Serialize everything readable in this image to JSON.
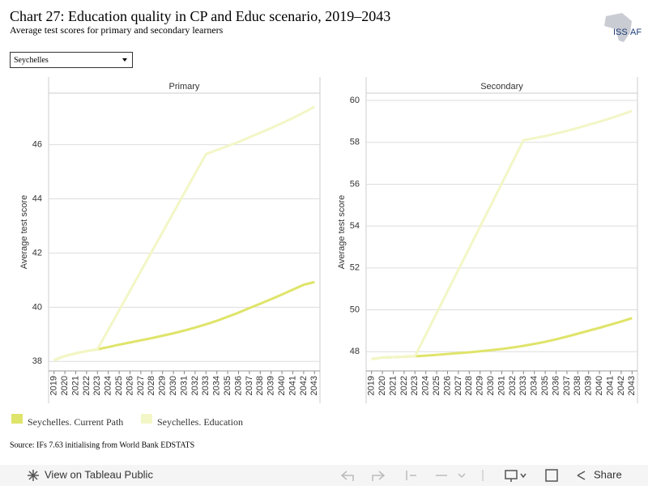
{
  "title": "Chart 27: Education quality in CP and Educ scenario, 2019–2043",
  "subtitle": "Average test scores for primary and secondary learners",
  "dropdown": "Seychelles",
  "logo": [
    "ISS",
    "AF"
  ],
  "source": "Source: IFs 7.63 initialising from World Bank EDSTATS",
  "toolbar": {
    "view": "View on Tableau Public",
    "share": "Share"
  },
  "chart_data": [
    {
      "type": "line",
      "title": "Primary",
      "y_label": "Average test score",
      "categories": [
        "2019",
        "2020",
        "2021",
        "2022",
        "2023",
        "2024",
        "2025",
        "2026",
        "2027",
        "2028",
        "2029",
        "2030",
        "2031",
        "2032",
        "2033",
        "2034",
        "2035",
        "2036",
        "2037",
        "2038",
        "2039",
        "2040",
        "2041",
        "2042",
        "2043"
      ],
      "series": [
        {
          "name": "Seychelles. Current Path",
          "color": "#dfe46a",
          "values": [
            38.05,
            38.2,
            38.3,
            38.38,
            38.45,
            38.53,
            38.62,
            38.7,
            38.78,
            38.86,
            38.95,
            39.04,
            39.14,
            39.25,
            39.37,
            39.5,
            39.65,
            39.8,
            39.97,
            40.13,
            40.3,
            40.47,
            40.65,
            40.83,
            40.93
          ]
        },
        {
          "name": "Seychelles. Education",
          "color": "#f3f6c6",
          "values": [
            38.05,
            38.2,
            38.3,
            38.38,
            38.45,
            39.17,
            39.89,
            40.61,
            41.33,
            42.05,
            42.77,
            43.49,
            44.21,
            44.93,
            45.65,
            45.8,
            45.95,
            46.1,
            46.27,
            46.44,
            46.61,
            46.79,
            46.98,
            47.18,
            47.4
          ]
        }
      ],
      "ylim": [
        37.65,
        47.9
      ],
      "yticks": [
        38,
        40,
        42,
        44,
        46
      ],
      "grid": true
    },
    {
      "type": "line",
      "title": "Secondary",
      "y_label": "Average test score",
      "categories": [
        "2019",
        "2020",
        "2021",
        "2022",
        "2023",
        "2024",
        "2025",
        "2026",
        "2027",
        "2028",
        "2029",
        "2030",
        "2031",
        "2032",
        "2033",
        "2034",
        "2035",
        "2036",
        "2037",
        "2038",
        "2039",
        "2040",
        "2041",
        "2042",
        "2043"
      ],
      "series": [
        {
          "name": "Seychelles. Current Path",
          "color": "#dfe46a",
          "values": [
            47.65,
            47.72,
            47.74,
            47.76,
            47.78,
            47.81,
            47.85,
            47.89,
            47.93,
            47.97,
            48.02,
            48.07,
            48.13,
            48.2,
            48.28,
            48.37,
            48.47,
            48.59,
            48.72,
            48.86,
            49.0,
            49.14,
            49.29,
            49.44,
            49.6
          ]
        },
        {
          "name": "Seychelles. Education",
          "color": "#f3f6c6",
          "values": [
            47.65,
            47.72,
            47.74,
            47.76,
            47.78,
            48.81,
            49.84,
            50.88,
            51.91,
            52.94,
            53.97,
            55.0,
            56.04,
            57.07,
            58.1,
            58.2,
            58.3,
            58.42,
            58.55,
            58.69,
            58.84,
            58.99,
            59.15,
            59.32,
            59.5
          ]
        }
      ],
      "ylim": [
        47.08,
        60.35
      ],
      "yticks": [
        48,
        50,
        52,
        54,
        56,
        58,
        60
      ],
      "grid": true
    }
  ]
}
